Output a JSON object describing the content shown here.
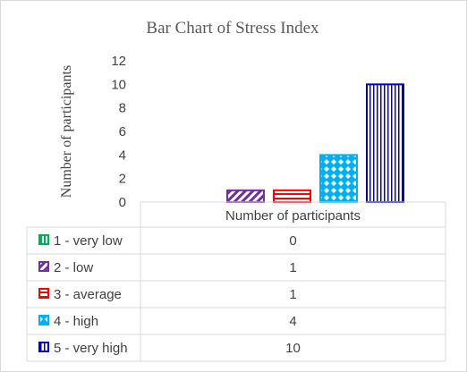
{
  "chart_data": {
    "type": "bar",
    "title": "Bar Chart of Stress Index",
    "ylabel": "Number of participants",
    "ylim": [
      0,
      12
    ],
    "yticks": [
      0,
      2,
      4,
      6,
      8,
      10,
      12
    ],
    "grid": false,
    "categories": [
      "Number of participants"
    ],
    "series": [
      {
        "name": "1 - very low",
        "values": [
          0
        ],
        "color": "#00b050",
        "pattern": "vertical-thick"
      },
      {
        "name": "2 - low",
        "values": [
          1
        ],
        "color": "#7030a0",
        "pattern": "diagonal"
      },
      {
        "name": "3 - average",
        "values": [
          1
        ],
        "color": "#ff0000",
        "pattern": "horizontal"
      },
      {
        "name": "4 - high",
        "values": [
          4
        ],
        "color": "#00b0f0",
        "pattern": "diamond"
      },
      {
        "name": "5 - very high",
        "values": [
          10
        ],
        "color": "#0000cc",
        "pattern": "vertical"
      }
    ],
    "legend_placement": "data-table"
  }
}
